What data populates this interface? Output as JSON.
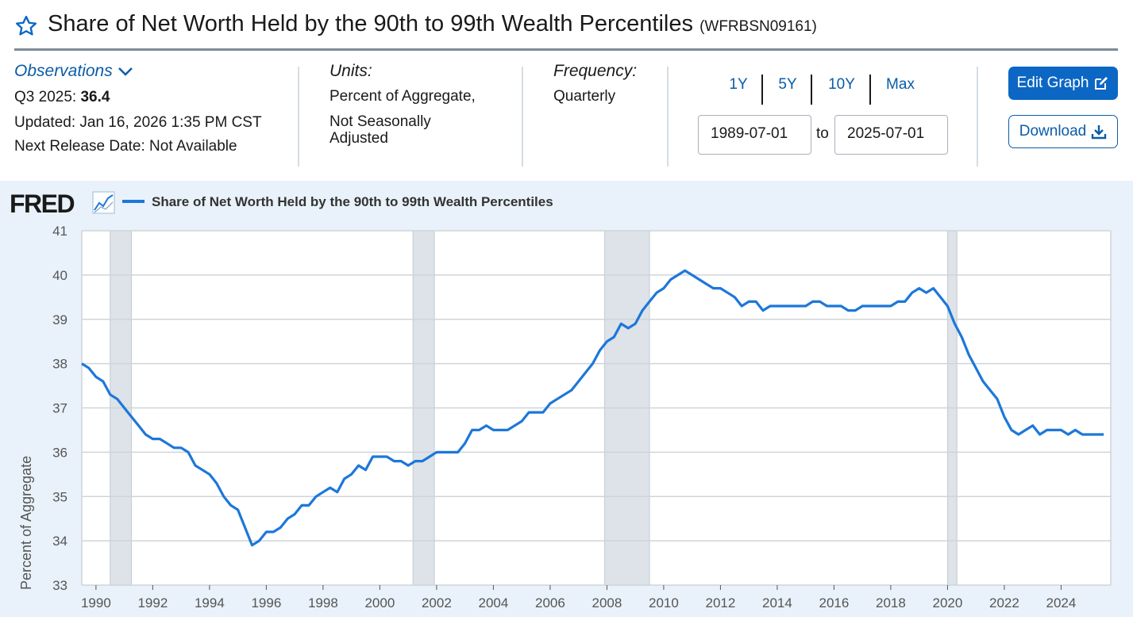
{
  "header": {
    "title": "Share of Net Worth Held by the 90th to 99th Wealth Percentiles",
    "series_id": "(WFRBSN09161)"
  },
  "observations": {
    "label": "Observations",
    "latest_period": "Q3 2025:",
    "latest_value": "36.4",
    "updated": "Updated: Jan 16, 2026 1:35 PM CST",
    "next_release": "Next Release Date: Not Available"
  },
  "units": {
    "label": "Units:",
    "line1": "Percent of Aggregate,",
    "line2": "Not Seasonally",
    "line3": "Adjusted"
  },
  "frequency": {
    "label": "Frequency:",
    "value": "Quarterly"
  },
  "range_buttons": [
    "1Y",
    "5Y",
    "10Y",
    "Max"
  ],
  "date_range": {
    "start": "1989-07-01",
    "to_label": "to",
    "end": "2025-07-01"
  },
  "actions": {
    "edit_graph": "Edit Graph",
    "download": "Download"
  },
  "brand": {
    "logo_text": "FRED"
  },
  "colors": {
    "line": "#1d77d9",
    "recession": "#dde3e9",
    "accent": "#0c67c4"
  },
  "chart_data": {
    "type": "line",
    "title": "Share of Net Worth Held by the 90th to 99th Wealth Percentiles",
    "legend": "Share of Net Worth Held by the 90th to 99th Wealth Percentiles",
    "xlabel": "",
    "ylabel": "Percent of Aggregate",
    "ylim": [
      33,
      41
    ],
    "xlim": [
      1989.5,
      2025.75
    ],
    "yticks": [
      "33",
      "34",
      "35",
      "36",
      "37",
      "38",
      "39",
      "40",
      "41"
    ],
    "xticks": [
      "1990",
      "1992",
      "1994",
      "1996",
      "1998",
      "2000",
      "2002",
      "2004",
      "2006",
      "2008",
      "2010",
      "2012",
      "2014",
      "2016",
      "2018",
      "2020",
      "2022",
      "2024"
    ],
    "recessions": [
      [
        1990.5,
        1991.25
      ],
      [
        2001.17,
        2001.92
      ],
      [
        2007.92,
        2009.5
      ],
      [
        2020.0,
        2020.33
      ]
    ],
    "series": [
      {
        "name": "Share of Net Worth Held by the 90th to 99th Wealth Percentiles",
        "x": [
          1989.5,
          1989.75,
          1990,
          1990.25,
          1990.5,
          1990.75,
          1991,
          1991.25,
          1991.5,
          1991.75,
          1992,
          1992.25,
          1992.5,
          1992.75,
          1993,
          1993.25,
          1993.5,
          1993.75,
          1994,
          1994.25,
          1994.5,
          1994.75,
          1995,
          1995.25,
          1995.5,
          1995.75,
          1996,
          1996.25,
          1996.5,
          1996.75,
          1997,
          1997.25,
          1997.5,
          1997.75,
          1998,
          1998.25,
          1998.5,
          1998.75,
          1999,
          1999.25,
          1999.5,
          1999.75,
          2000,
          2000.25,
          2000.5,
          2000.75,
          2001,
          2001.25,
          2001.5,
          2001.75,
          2002,
          2002.25,
          2002.5,
          2002.75,
          2003,
          2003.25,
          2003.5,
          2003.75,
          2004,
          2004.25,
          2004.5,
          2004.75,
          2005,
          2005.25,
          2005.5,
          2005.75,
          2006,
          2006.25,
          2006.5,
          2006.75,
          2007,
          2007.25,
          2007.5,
          2007.75,
          2008,
          2008.25,
          2008.5,
          2008.75,
          2009,
          2009.25,
          2009.5,
          2009.75,
          2010,
          2010.25,
          2010.5,
          2010.75,
          2011,
          2011.25,
          2011.5,
          2011.75,
          2012,
          2012.25,
          2012.5,
          2012.75,
          2013,
          2013.25,
          2013.5,
          2013.75,
          2014,
          2014.25,
          2014.5,
          2014.75,
          2015,
          2015.25,
          2015.5,
          2015.75,
          2016,
          2016.25,
          2016.5,
          2016.75,
          2017,
          2017.25,
          2017.5,
          2017.75,
          2018,
          2018.25,
          2018.5,
          2018.75,
          2019,
          2019.25,
          2019.5,
          2019.75,
          2020,
          2020.25,
          2020.5,
          2020.75,
          2021,
          2021.25,
          2021.5,
          2021.75,
          2022,
          2022.25,
          2022.5,
          2022.75,
          2023,
          2023.25,
          2023.5,
          2023.75,
          2024,
          2024.25,
          2024.5,
          2024.75,
          2025,
          2025.25,
          2025.5
        ],
        "values": [
          38.0,
          37.9,
          37.7,
          37.6,
          37.3,
          37.2,
          37.0,
          36.8,
          36.6,
          36.4,
          36.3,
          36.3,
          36.2,
          36.1,
          36.1,
          36.0,
          35.7,
          35.6,
          35.5,
          35.3,
          35.0,
          34.8,
          34.7,
          34.3,
          33.9,
          34.0,
          34.2,
          34.2,
          34.3,
          34.5,
          34.6,
          34.8,
          34.8,
          35.0,
          35.1,
          35.2,
          35.1,
          35.4,
          35.5,
          35.7,
          35.6,
          35.9,
          35.9,
          35.9,
          35.8,
          35.8,
          35.7,
          35.8,
          35.8,
          35.9,
          36.0,
          36.0,
          36.0,
          36.0,
          36.2,
          36.5,
          36.5,
          36.6,
          36.5,
          36.5,
          36.5,
          36.6,
          36.7,
          36.9,
          36.9,
          36.9,
          37.1,
          37.2,
          37.3,
          37.4,
          37.6,
          37.8,
          38.0,
          38.3,
          38.5,
          38.6,
          38.9,
          38.8,
          38.9,
          39.2,
          39.4,
          39.6,
          39.7,
          39.9,
          40.0,
          40.1,
          40.0,
          39.9,
          39.8,
          39.7,
          39.7,
          39.6,
          39.5,
          39.3,
          39.4,
          39.4,
          39.2,
          39.3,
          39.3,
          39.3,
          39.3,
          39.3,
          39.3,
          39.4,
          39.4,
          39.3,
          39.3,
          39.3,
          39.2,
          39.2,
          39.3,
          39.3,
          39.3,
          39.3,
          39.3,
          39.4,
          39.4,
          39.6,
          39.7,
          39.6,
          39.7,
          39.5,
          39.3,
          38.9,
          38.6,
          38.2,
          37.9,
          37.6,
          37.4,
          37.2,
          36.8,
          36.5,
          36.4,
          36.5,
          36.6,
          36.4,
          36.5,
          36.5,
          36.5,
          36.4,
          36.5,
          36.4,
          36.4,
          36.4,
          36.4
        ]
      }
    ]
  }
}
